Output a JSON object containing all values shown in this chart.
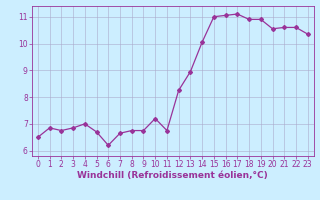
{
  "x": [
    0,
    1,
    2,
    3,
    4,
    5,
    6,
    7,
    8,
    9,
    10,
    11,
    12,
    13,
    14,
    15,
    16,
    17,
    18,
    19,
    20,
    21,
    22,
    23
  ],
  "y": [
    6.5,
    6.85,
    6.75,
    6.85,
    7.0,
    6.7,
    6.2,
    6.65,
    6.75,
    6.75,
    7.2,
    6.75,
    8.25,
    8.95,
    10.05,
    11.0,
    11.05,
    11.1,
    10.9,
    10.9,
    10.55,
    10.6,
    10.6,
    10.35
  ],
  "line_color": "#993399",
  "marker": "D",
  "marker_size": 2,
  "linewidth": 0.9,
  "xlabel": "Windchill (Refroidissement éolien,°C)",
  "xlim": [
    -0.5,
    23.5
  ],
  "ylim": [
    5.8,
    11.4
  ],
  "xticks": [
    0,
    1,
    2,
    3,
    4,
    5,
    6,
    7,
    8,
    9,
    10,
    11,
    12,
    13,
    14,
    15,
    16,
    17,
    18,
    19,
    20,
    21,
    22,
    23
  ],
  "yticks": [
    6,
    7,
    8,
    9,
    10,
    11
  ],
  "bg_color": "#cceeff",
  "grid_color": "#aaaacc",
  "tick_color": "#993399",
  "label_color": "#993399",
  "tick_fontsize": 5.5,
  "xlabel_fontsize": 6.5
}
